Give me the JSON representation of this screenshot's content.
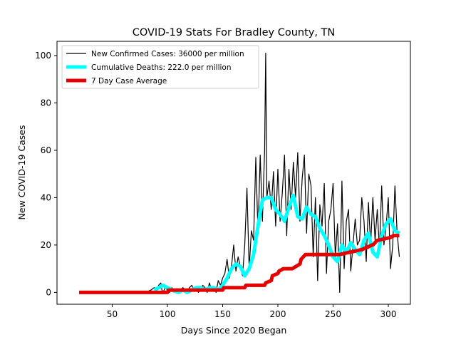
{
  "chart_data": {
    "type": "line",
    "title": "COVID-19 Stats For Bradley County, TN",
    "xlabel": "Days Since 2020 Began",
    "ylabel": "New COVID-19 Cases",
    "xlim": [
      0,
      320
    ],
    "ylim": [
      -5,
      106
    ],
    "xticks": [
      50,
      100,
      150,
      200,
      250,
      300
    ],
    "yticks": [
      0,
      20,
      40,
      60,
      80,
      100
    ],
    "grid": false,
    "legend_position": "top-left",
    "series": [
      {
        "name": "New Confirmed Cases: 36000 per million",
        "color": "#000000",
        "x": [
          20,
          40,
          60,
          80,
          85,
          88,
          90,
          92,
          94,
          95,
          96,
          98,
          100,
          102,
          104,
          106,
          108,
          110,
          112,
          114,
          116,
          118,
          120,
          122,
          124,
          126,
          128,
          130,
          132,
          134,
          136,
          138,
          140,
          142,
          144,
          146,
          148,
          150,
          152,
          154,
          156,
          158,
          160,
          162,
          164,
          166,
          168,
          170,
          172,
          174,
          176,
          178,
          180,
          182,
          184,
          186,
          187,
          188,
          189,
          190,
          192,
          194,
          196,
          198,
          200,
          202,
          204,
          206,
          208,
          210,
          212,
          214,
          216,
          218,
          220,
          222,
          224,
          226,
          228,
          230,
          232,
          234,
          236,
          238,
          240,
          242,
          244,
          246,
          248,
          250,
          252,
          254,
          256,
          258,
          260,
          262,
          264,
          266,
          268,
          270,
          272,
          274,
          276,
          278,
          280,
          282,
          284,
          286,
          288,
          290,
          292,
          294,
          296,
          298,
          300,
          302,
          304,
          306,
          308,
          310
        ],
        "y": [
          0,
          0,
          0,
          0,
          1,
          2,
          0,
          3,
          4,
          1,
          0,
          2,
          1,
          0,
          2,
          0,
          1,
          0,
          1,
          2,
          1,
          0,
          2,
          3,
          1,
          2,
          0,
          1,
          3,
          2,
          0,
          4,
          1,
          2,
          0,
          5,
          3,
          6,
          8,
          14,
          6,
          11,
          20,
          9,
          15,
          11,
          7,
          20,
          44,
          10,
          26,
          22,
          57,
          25,
          58,
          30,
          45,
          60,
          101,
          40,
          47,
          35,
          51,
          28,
          52,
          30,
          42,
          58,
          24,
          52,
          35,
          55,
          40,
          59,
          30,
          48,
          58,
          25,
          50,
          45,
          15,
          40,
          5,
          37,
          28,
          46,
          8,
          30,
          35,
          46,
          15,
          29,
          0,
          47,
          10,
          30,
          35,
          9,
          20,
          31,
          20,
          22,
          40,
          30,
          13,
          38,
          20,
          40,
          22,
          35,
          18,
          45,
          20,
          28,
          40,
          10,
          20,
          45,
          25,
          15
        ],
        "show_in_legend": true
      },
      {
        "name": "Cumulative Deaths: 222.0 per million",
        "color": "#00ffff",
        "x": [
          88,
          92,
          96,
          100,
          104,
          110,
          114,
          118,
          122,
          126,
          130,
          134,
          138,
          142,
          146,
          150,
          154,
          158,
          162,
          166,
          170,
          174,
          178,
          182,
          186,
          190,
          194,
          198,
          202,
          206,
          210,
          214,
          218,
          222,
          226,
          230,
          234,
          238,
          242,
          246,
          250,
          254,
          258,
          262,
          266,
          270,
          274,
          278,
          282,
          286,
          290,
          294,
          298,
          302,
          306,
          310
        ],
        "y": [
          1,
          2,
          3,
          2,
          1,
          0,
          1,
          0,
          1,
          2,
          2,
          1,
          2,
          2,
          1,
          3,
          6,
          10,
          12,
          11,
          7,
          10,
          16,
          28,
          39,
          40,
          40,
          35,
          33,
          30,
          36,
          41,
          32,
          31,
          36,
          33,
          32,
          27,
          24,
          20,
          15,
          13,
          20,
          17,
          21,
          18,
          16,
          22,
          25,
          17,
          15,
          24,
          29,
          31,
          26,
          25
        ],
        "show_in_legend": true
      },
      {
        "name": "7 Day Case Average",
        "color": "#e50000",
        "x": [
          20,
          80,
          100,
          101,
          150,
          151,
          160,
          161,
          170,
          171,
          180,
          181,
          188,
          189,
          194,
          195,
          200,
          201,
          205,
          206,
          212,
          213,
          220,
          221,
          225,
          226,
          235,
          236,
          255,
          256,
          265,
          266,
          275,
          276,
          280,
          281,
          285,
          286,
          290,
          291,
          300,
          301,
          305,
          306,
          310
        ],
        "y": [
          0,
          0,
          0,
          1,
          1,
          2,
          2,
          2,
          2,
          3,
          3,
          3,
          3,
          4,
          5,
          7,
          8,
          9,
          10,
          10,
          10,
          10,
          12,
          14,
          16,
          16,
          16,
          16,
          16,
          16,
          17,
          17,
          18,
          18,
          19,
          19,
          20,
          20,
          22,
          22,
          23,
          23,
          24,
          24,
          24
        ],
        "show_in_legend": true
      }
    ]
  }
}
